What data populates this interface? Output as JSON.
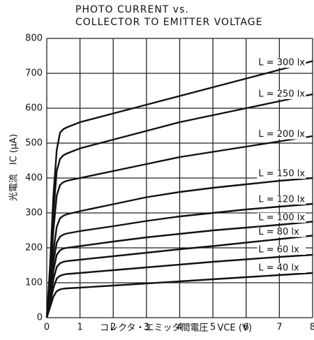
{
  "chart_data": {
    "type": "line",
    "title": "PHOTO CURRENT vs.",
    "subtitle": "COLLECTOR TO EMITTER VOLTAGE",
    "x_label": "コレクタ・エミッタ間電圧　VCE (V)",
    "y_label": "光電流　IC (μA)",
    "x": [
      0,
      0.1,
      0.2,
      0.3,
      0.4,
      0.5,
      0.6,
      1,
      2,
      3,
      4,
      5,
      6,
      7,
      8
    ],
    "series": [
      {
        "name": "L = 300 lx",
        "color": "#111111",
        "values": [
          0,
          150,
          350,
          480,
          530,
          540,
          545,
          560,
          585,
          610,
          635,
          660,
          685,
          710,
          735
        ]
      },
      {
        "name": "L = 250 lx",
        "color": "#111111",
        "values": [
          0,
          120,
          300,
          420,
          455,
          465,
          470,
          485,
          510,
          535,
          560,
          580,
          600,
          620,
          640
        ]
      },
      {
        "name": "L = 200 lx",
        "color": "#111111",
        "values": [
          0,
          100,
          250,
          350,
          380,
          388,
          392,
          400,
          420,
          440,
          460,
          475,
          490,
          505,
          520
        ]
      },
      {
        "name": "L = 150 lx",
        "color": "#111111",
        "values": [
          0,
          80,
          190,
          260,
          285,
          292,
          296,
          305,
          325,
          345,
          360,
          372,
          382,
          392,
          400
        ]
      },
      {
        "name": "L = 120 lx",
        "color": "#111111",
        "values": [
          0,
          70,
          160,
          215,
          232,
          238,
          241,
          248,
          262,
          277,
          290,
          300,
          310,
          318,
          326
        ]
      },
      {
        "name": "L = 100 lx",
        "color": "#111111",
        "values": [
          0,
          60,
          135,
          180,
          193,
          198,
          200,
          205,
          218,
          230,
          240,
          250,
          258,
          266,
          275
        ]
      },
      {
        "name": "L = 80 lx",
        "color": "#111111",
        "values": [
          0,
          50,
          110,
          145,
          156,
          160,
          162,
          166,
          176,
          186,
          196,
          205,
          215,
          225,
          235
        ]
      },
      {
        "name": "L = 60 lx",
        "color": "#111111",
        "values": [
          0,
          40,
          85,
          112,
          120,
          123,
          125,
          128,
          136,
          144,
          152,
          160,
          167,
          174,
          180
        ]
      },
      {
        "name": "L = 40 lx",
        "color": "#111111",
        "values": [
          0,
          30,
          60,
          76,
          81,
          83,
          84,
          86,
          92,
          98,
          104,
          110,
          116,
          122,
          128
        ]
      }
    ],
    "xlim": [
      0,
      8
    ],
    "xticks": [
      0,
      1,
      2,
      3,
      4,
      5,
      6,
      7,
      8
    ],
    "ylim": [
      0,
      800
    ],
    "yticks": [
      0,
      100,
      200,
      300,
      400,
      500,
      600,
      700,
      800
    ],
    "grid": true
  }
}
